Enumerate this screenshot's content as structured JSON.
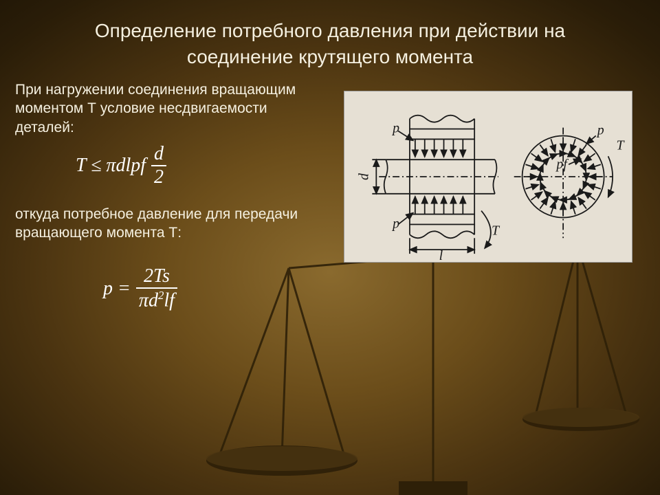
{
  "title_line1": "Определение потребного давления  при действии на",
  "title_line2": "соединение крутящего момента",
  "para1": "При нагружении соединения вращающим моментом Т условие несдвигаемости деталей:",
  "para2": "откуда потребное давление для передачи вращающего момента Т:",
  "formula1": {
    "lhs": "T ≤ πdlpf",
    "frac_num": "d",
    "frac_den": "2"
  },
  "formula2": {
    "lhs": "p =",
    "frac_num": "2Ts",
    "frac_den_pi": "π",
    "frac_den_d": "d",
    "frac_den_sup": "2",
    "frac_den_rest": "lf"
  },
  "diagram": {
    "labels": {
      "p": "p",
      "T": "T",
      "l": "l",
      "d": "d",
      "pf": "pf"
    },
    "stroke": "#1a1a1a",
    "bg": "#e6e0d4",
    "hatch": "#1a1a1a"
  },
  "colors": {
    "text": "#f5f0e0",
    "formula": "#ffffff",
    "scales": "#3a2a10"
  }
}
